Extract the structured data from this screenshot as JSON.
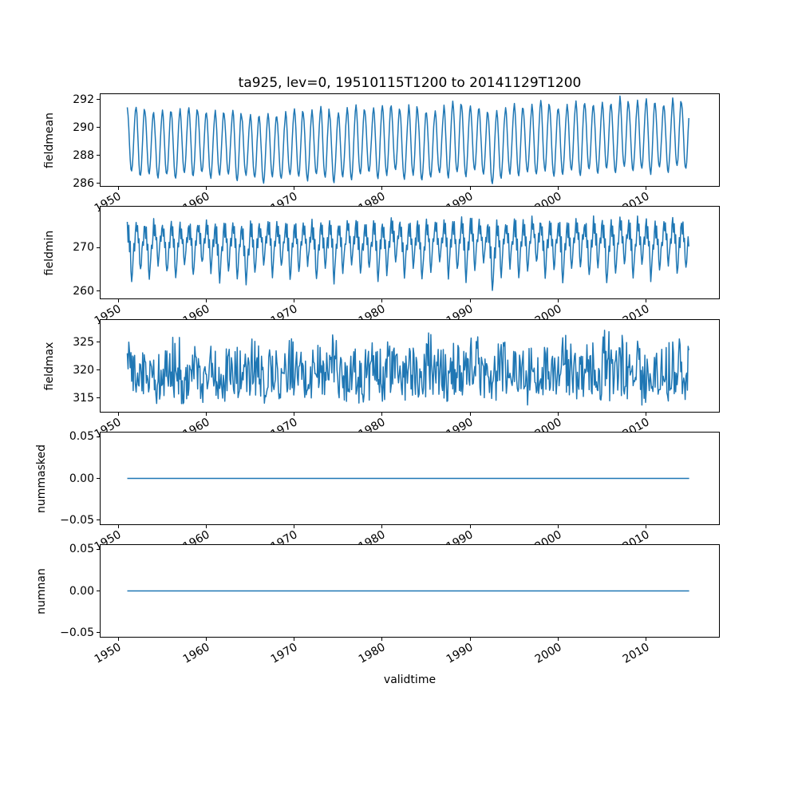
{
  "figure": {
    "title": "ta925, lev=0, 19510115T1200 to 20141129T1200",
    "xlabel": "validtime",
    "line_color": "#1f77b4",
    "background_color": "#ffffff",
    "axis_color": "#000000"
  },
  "x_axis": {
    "label": "validtime",
    "ticks": [
      1950,
      1960,
      1970,
      1980,
      1990,
      2000,
      2010
    ],
    "tick_labels": [
      "1950",
      "1960",
      "1970",
      "1980",
      "1990",
      "2000",
      "2010"
    ],
    "limits": [
      1948.0,
      2018.3
    ],
    "data_start": 1951.04,
    "data_end": 2014.91,
    "tick_rotation_deg": 30
  },
  "chart_data": [
    {
      "type": "line",
      "name": "fieldmean",
      "ylabel": "fieldmean",
      "kind": "seasonal",
      "ylim": [
        285.8,
        292.4
      ],
      "yticks": [
        286,
        288,
        290,
        292
      ],
      "ytick_labels": [
        "286",
        "288",
        "290",
        "292"
      ],
      "start_year": 1951,
      "points_per_year": 12,
      "seasonal_profile": [
        1.0,
        0.9,
        0.68,
        0.42,
        0.18,
        0.04,
        0.0,
        0.1,
        0.3,
        0.55,
        0.78,
        0.95
      ],
      "jitter": 0.08,
      "annual_high": [
        291.4,
        291.5,
        291.2,
        291.0,
        291.3,
        291.1,
        291.3,
        291.5,
        291.2,
        291.0,
        291.2,
        291.0,
        291.3,
        290.8,
        290.9,
        290.8,
        291.0,
        290.7,
        291.2,
        291.4,
        291.0,
        291.2,
        291.5,
        290.9,
        291.1,
        291.4,
        291.6,
        291.2,
        291.4,
        291.6,
        291.5,
        291.1,
        291.7,
        291.2,
        291.0,
        291.2,
        291.6,
        291.9,
        291.5,
        291.6,
        291.3,
        291.0,
        291.2,
        291.5,
        291.7,
        291.3,
        291.6,
        292.0,
        291.5,
        291.4,
        291.7,
        291.9,
        291.8,
        291.5,
        291.8,
        291.6,
        292.2,
        291.6,
        291.9,
        292.0,
        291.7,
        291.6,
        292.1,
        291.8
      ],
      "annual_low": [
        286.8,
        286.5,
        286.7,
        286.4,
        286.6,
        286.3,
        286.7,
        286.5,
        286.8,
        286.4,
        286.6,
        286.7,
        286.2,
        286.6,
        286.4,
        286.0,
        286.5,
        286.3,
        286.6,
        286.5,
        286.2,
        286.7,
        286.4,
        286.1,
        286.5,
        286.3,
        286.6,
        286.8,
        286.4,
        286.6,
        286.9,
        286.3,
        286.6,
        286.2,
        286.5,
        286.7,
        286.4,
        286.8,
        286.5,
        286.9,
        286.6,
        285.9,
        286.4,
        286.7,
        286.5,
        286.8,
        286.6,
        286.9,
        286.5,
        286.7,
        286.9,
        286.6,
        287.0,
        286.7,
        287.1,
        286.8,
        287.2,
        286.9,
        287.0,
        286.7,
        287.1,
        286.8,
        287.2,
        287.0
      ]
    },
    {
      "type": "line",
      "name": "fieldmin",
      "ylabel": "fieldmin",
      "kind": "seasonal",
      "ylim": [
        258.3,
        279.4
      ],
      "yticks": [
        260,
        270
      ],
      "ytick_labels": [
        "260",
        "270"
      ],
      "start_year": 1951,
      "points_per_year": 12,
      "seasonal_profile": [
        0.95,
        0.7,
        0.9,
        0.5,
        0.65,
        0.2,
        0.0,
        0.15,
        0.4,
        0.6,
        0.5,
        0.8
      ],
      "jitter": 0.7,
      "annual_high": [
        276.2,
        276.8,
        275.9,
        276.5,
        276.1,
        276.7,
        275.8,
        276.3,
        276.0,
        276.6,
        275.7,
        276.2,
        276.9,
        275.8,
        276.4,
        276.0,
        276.5,
        275.9,
        276.7,
        276.3,
        275.8,
        276.5,
        276.1,
        276.8,
        275.9,
        276.4,
        276.6,
        276.0,
        276.7,
        276.2,
        276.9,
        275.8,
        276.5,
        276.1,
        276.7,
        276.3,
        277.0,
        276.5,
        277.3,
        277.8,
        276.6,
        276.2,
        276.8,
        276.4,
        277.0,
        276.5,
        277.1,
        276.7,
        276.3,
        276.9,
        276.5,
        277.1,
        276.6,
        277.2,
        276.8,
        276.4,
        277.0,
        276.6,
        277.2,
        276.7,
        276.3,
        276.9,
        277.4,
        276.8
      ],
      "annual_low": [
        261.5,
        264.5,
        263.0,
        266.0,
        264.0,
        262.5,
        265.5,
        263.5,
        266.5,
        264.5,
        262.0,
        265.0,
        263.0,
        261.8,
        264.0,
        266.0,
        263.5,
        265.5,
        262.5,
        264.5,
        266.0,
        263.0,
        265.0,
        262.2,
        264.5,
        266.5,
        263.5,
        265.0,
        262.8,
        264.0,
        266.0,
        263.2,
        265.5,
        262.5,
        264.8,
        266.2,
        263.0,
        265.0,
        262.3,
        264.2,
        266.0,
        259.6,
        263.5,
        265.5,
        262.8,
        264.5,
        266.3,
        263.2,
        265.0,
        262.5,
        264.8,
        266.0,
        263.5,
        265.2,
        262.0,
        264.5,
        266.2,
        263.0,
        265.5,
        262.8,
        264.2,
        266.0,
        263.5,
        264.8
      ]
    },
    {
      "type": "line",
      "name": "fieldmax",
      "ylabel": "fieldmax",
      "kind": "noise",
      "ylim": [
        312.55,
        328.95
      ],
      "yticks": [
        315,
        320,
        325
      ],
      "ytick_labels": [
        "315",
        "320",
        "325"
      ],
      "start_year": 1951,
      "points_per_year": 12,
      "annual_high": [
        325.0,
        323.5,
        324.5,
        322.8,
        324.0,
        326.2,
        323.2,
        324.8,
        322.5,
        325.5,
        323.8,
        326.5,
        324.2,
        323.0,
        325.8,
        322.6,
        324.5,
        323.4,
        326.0,
        324.0,
        322.8,
        325.2,
        323.6,
        327.0,
        323.2,
        324.6,
        322.4,
        325.0,
        323.8,
        326.4,
        324.2,
        322.6,
        325.6,
        323.0,
        327.8,
        324.4,
        322.8,
        325.2,
        323.4,
        326.8,
        324.0,
        322.5,
        325.4,
        323.8,
        327.2,
        324.6,
        322.9,
        325.8,
        323.2,
        326.2,
        324.8,
        322.6,
        325.0,
        323.5,
        327.4,
        324.2,
        326.6,
        323.0,
        325.4,
        322.8,
        324.6,
        326.0,
        328.2,
        324.4
      ],
      "annual_low": [
        315.0,
        314.5,
        315.5,
        314.0,
        315.2,
        314.8,
        313.8,
        315.5,
        314.2,
        315.8,
        314.5,
        313.5,
        315.0,
        314.6,
        315.4,
        313.9,
        315.6,
        314.3,
        315.1,
        314.7,
        313.6,
        315.3,
        314.9,
        315.7,
        314.1,
        315.5,
        313.8,
        314.6,
        315.2,
        314.4,
        315.8,
        313.7,
        315.0,
        314.2,
        315.6,
        314.8,
        313.5,
        315.4,
        314.0,
        315.2,
        314.6,
        313.9,
        315.7,
        314.3,
        315.1,
        313.6,
        314.9,
        315.5,
        314.1,
        315.3,
        313.4,
        314.7,
        315.5,
        314.2,
        313.8,
        315.0,
        314.5,
        315.6,
        313.3,
        314.8,
        315.2,
        314.0,
        315.4,
        314.6
      ]
    },
    {
      "type": "line",
      "name": "nummasked",
      "ylabel": "nummasked",
      "kind": "constant",
      "value": 0.0,
      "ylim": [
        -0.055,
        0.055
      ],
      "yticks": [
        -0.05,
        0.0,
        0.05
      ],
      "ytick_labels": [
        "−0.05",
        "0.00",
        "0.05"
      ]
    },
    {
      "type": "line",
      "name": "numnan",
      "ylabel": "numnan",
      "kind": "constant",
      "value": 0.0,
      "ylim": [
        -0.055,
        0.055
      ],
      "yticks": [
        -0.05,
        0.0,
        0.05
      ],
      "ytick_labels": [
        "−0.05",
        "0.00",
        "0.05"
      ]
    }
  ]
}
